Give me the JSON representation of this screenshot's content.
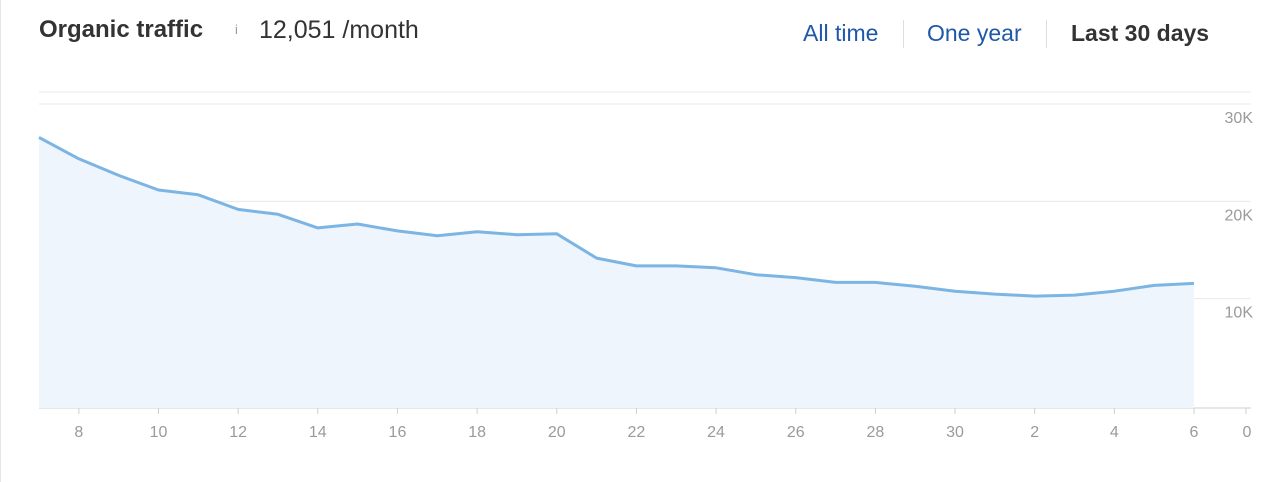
{
  "header": {
    "title": "Organic traffic",
    "info": "i",
    "value": "12,051 /month"
  },
  "ranges": [
    {
      "label": "All time",
      "active": false
    },
    {
      "label": "One year",
      "active": false
    },
    {
      "label": "Last 30 days",
      "active": true
    }
  ],
  "colors": {
    "line": "#7cb5e3",
    "fill": "#eef5fc",
    "link": "#1f58a8",
    "grid": "#e8e8e8",
    "tick": "#9a9a9a"
  },
  "chart_data": {
    "type": "area",
    "x": [
      7,
      8,
      9,
      10,
      11,
      12,
      13,
      14,
      15,
      16,
      17,
      18,
      19,
      20,
      21,
      22,
      23,
      24,
      25,
      26,
      27,
      28,
      29,
      30,
      1,
      2,
      3,
      4,
      5,
      6
    ],
    "values": [
      27800,
      25600,
      23900,
      22400,
      21900,
      20400,
      19900,
      18500,
      18900,
      18200,
      17700,
      18100,
      17800,
      17900,
      15400,
      14600,
      14600,
      14400,
      13700,
      13400,
      12900,
      12900,
      12500,
      12000,
      11700,
      11500,
      11600,
      12000,
      12600,
      12800
    ],
    "x_tick_labels": [
      "8",
      "10",
      "12",
      "14",
      "16",
      "18",
      "20",
      "22",
      "24",
      "26",
      "28",
      "30",
      "2",
      "4",
      "6"
    ],
    "y_ticks": [
      10000,
      20000,
      30000
    ],
    "y_tick_labels": [
      "10K",
      "20K",
      "30K"
    ],
    "extra_tick_label": "0",
    "ylim": [
      0,
      30000
    ],
    "grid": true
  }
}
